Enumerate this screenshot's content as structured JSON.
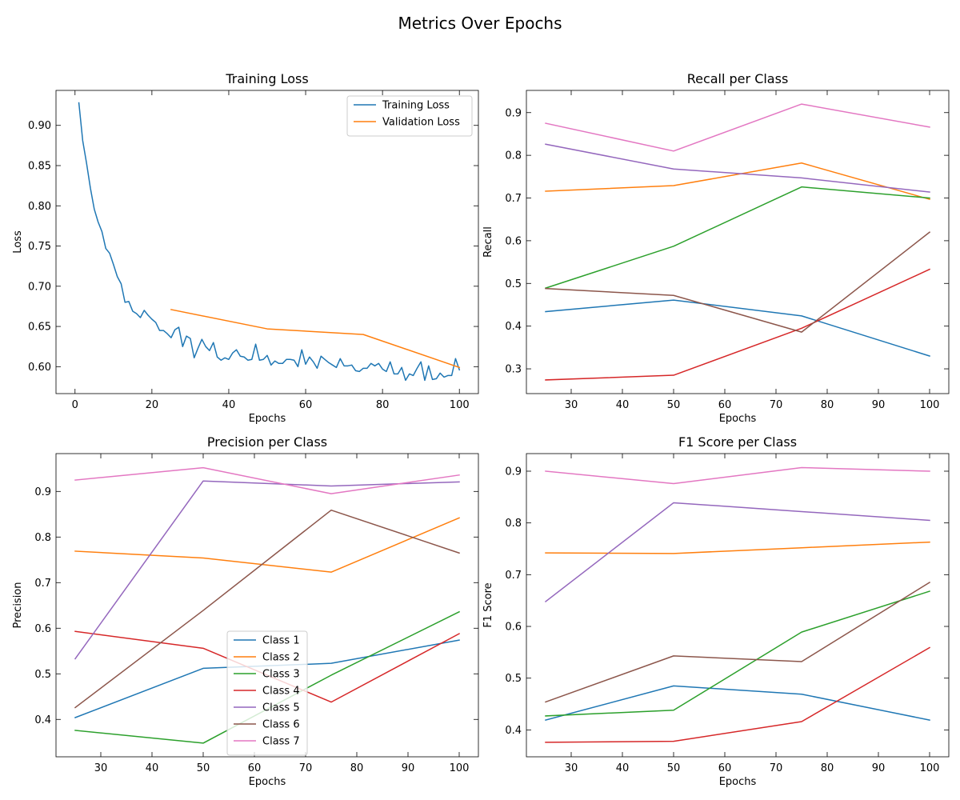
{
  "figure": {
    "title": "Metrics Over Epochs"
  },
  "chart_data": [
    {
      "type": "line",
      "title": "Training Loss",
      "xlabel": "Epochs",
      "ylabel": "Loss",
      "xlim": [
        -4.95,
        104.95
      ],
      "ylim": [
        0.5665,
        0.9435
      ],
      "xticks": [
        0,
        20,
        40,
        60,
        80,
        100
      ],
      "yticks": [
        0.6,
        0.65,
        0.7,
        0.75,
        0.8,
        0.85,
        0.9
      ],
      "ytick_format": 2,
      "legend": "top-right",
      "series": [
        {
          "name": "Training Loss",
          "color": "#1f77b4",
          "x": [
            1,
            2,
            3,
            4,
            5,
            6,
            7,
            8,
            9,
            10,
            11,
            12,
            13,
            14,
            15,
            16,
            17,
            18,
            19,
            20,
            21,
            22,
            23,
            24,
            25,
            26,
            27,
            28,
            29,
            30,
            31,
            32,
            33,
            34,
            35,
            36,
            37,
            38,
            39,
            40,
            41,
            42,
            43,
            44,
            45,
            46,
            47,
            48,
            49,
            50,
            51,
            52,
            53,
            54,
            55,
            56,
            57,
            58,
            59,
            60,
            61,
            62,
            63,
            64,
            65,
            66,
            67,
            68,
            69,
            70,
            71,
            72,
            73,
            74,
            75,
            76,
            77,
            78,
            79,
            80,
            81,
            82,
            83,
            84,
            85,
            86,
            87,
            88,
            89,
            90,
            91,
            92,
            93,
            94,
            95,
            96,
            97,
            98,
            99,
            100
          ],
          "y": [
            0.928,
            0.881,
            0.853,
            0.822,
            0.796,
            0.78,
            0.768,
            0.747,
            0.741,
            0.727,
            0.712,
            0.703,
            0.68,
            0.681,
            0.669,
            0.666,
            0.661,
            0.67,
            0.664,
            0.659,
            0.655,
            0.645,
            0.645,
            0.641,
            0.636,
            0.646,
            0.649,
            0.625,
            0.638,
            0.635,
            0.611,
            0.623,
            0.634,
            0.625,
            0.62,
            0.63,
            0.612,
            0.608,
            0.611,
            0.609,
            0.617,
            0.621,
            0.613,
            0.612,
            0.608,
            0.609,
            0.628,
            0.608,
            0.609,
            0.614,
            0.602,
            0.607,
            0.604,
            0.604,
            0.609,
            0.609,
            0.608,
            0.6,
            0.621,
            0.603,
            0.612,
            0.606,
            0.598,
            0.613,
            0.609,
            0.605,
            0.602,
            0.599,
            0.61,
            0.601,
            0.601,
            0.602,
            0.595,
            0.594,
            0.598,
            0.598,
            0.604,
            0.601,
            0.604,
            0.597,
            0.594,
            0.606,
            0.591,
            0.591,
            0.599,
            0.583,
            0.591,
            0.589,
            0.598,
            0.606,
            0.583,
            0.601,
            0.584,
            0.585,
            0.592,
            0.587,
            0.589,
            0.589,
            0.61,
            0.596
          ]
        },
        {
          "name": "Validation Loss",
          "color": "#ff7f0e",
          "x": [
            25,
            50,
            75,
            100
          ],
          "y": [
            0.671,
            0.647,
            0.64,
            0.599
          ]
        }
      ]
    },
    {
      "type": "line",
      "title": "Recall per Class",
      "xlabel": "Epochs",
      "ylabel": "Recall",
      "xlim": [
        21.25,
        103.75
      ],
      "ylim": [
        0.242,
        0.952
      ],
      "xticks": [
        30,
        40,
        50,
        60,
        70,
        80,
        90,
        100
      ],
      "yticks": [
        0.3,
        0.4,
        0.5,
        0.6,
        0.7,
        0.8,
        0.9
      ],
      "ytick_format": 1,
      "legend": "none",
      "series": [
        {
          "name": "Class 1",
          "color": "#1f77b4",
          "x": [
            25,
            50,
            75,
            100
          ],
          "y": [
            0.434,
            0.461,
            0.424,
            0.33
          ]
        },
        {
          "name": "Class 2",
          "color": "#ff7f0e",
          "x": [
            25,
            50,
            75,
            100
          ],
          "y": [
            0.716,
            0.729,
            0.782,
            0.697
          ]
        },
        {
          "name": "Class 3",
          "color": "#2ca02c",
          "x": [
            25,
            50,
            75,
            100
          ],
          "y": [
            0.489,
            0.587,
            0.726,
            0.7
          ]
        },
        {
          "name": "Class 4",
          "color": "#d62728",
          "x": [
            25,
            50,
            75,
            100
          ],
          "y": [
            0.274,
            0.285,
            0.395,
            0.533
          ]
        },
        {
          "name": "Class 5",
          "color": "#9467bd",
          "x": [
            25,
            50,
            75,
            100
          ],
          "y": [
            0.826,
            0.768,
            0.747,
            0.714
          ]
        },
        {
          "name": "Class 6",
          "color": "#8c564b",
          "x": [
            25,
            50,
            75,
            100
          ],
          "y": [
            0.488,
            0.472,
            0.386,
            0.62
          ]
        },
        {
          "name": "Class 7",
          "color": "#e377c2",
          "x": [
            25,
            50,
            75,
            100
          ],
          "y": [
            0.875,
            0.81,
            0.92,
            0.866
          ]
        }
      ]
    },
    {
      "type": "line",
      "title": "Precision per Class",
      "xlabel": "Epochs",
      "ylabel": "Precision",
      "xlim": [
        21.25,
        103.75
      ],
      "ylim": [
        0.318,
        0.983
      ],
      "xticks": [
        30,
        40,
        50,
        60,
        70,
        80,
        90,
        100
      ],
      "yticks": [
        0.4,
        0.5,
        0.6,
        0.7,
        0.8,
        0.9
      ],
      "ytick_format": 1,
      "legend": "bottom-center",
      "series": [
        {
          "name": "Class 1",
          "color": "#1f77b4",
          "x": [
            25,
            50,
            75,
            100
          ],
          "y": [
            0.404,
            0.512,
            0.523,
            0.574
          ]
        },
        {
          "name": "Class 2",
          "color": "#ff7f0e",
          "x": [
            25,
            50,
            75,
            100
          ],
          "y": [
            0.769,
            0.754,
            0.723,
            0.842
          ]
        },
        {
          "name": "Class 3",
          "color": "#2ca02c",
          "x": [
            25,
            50,
            75,
            100
          ],
          "y": [
            0.376,
            0.348,
            0.497,
            0.636
          ]
        },
        {
          "name": "Class 4",
          "color": "#d62728",
          "x": [
            25,
            50,
            75,
            100
          ],
          "y": [
            0.593,
            0.556,
            0.438,
            0.588
          ]
        },
        {
          "name": "Class 5",
          "color": "#9467bd",
          "x": [
            25,
            50,
            75,
            100
          ],
          "y": [
            0.533,
            0.923,
            0.912,
            0.921
          ]
        },
        {
          "name": "Class 6",
          "color": "#8c564b",
          "x": [
            25,
            50,
            75,
            100
          ],
          "y": [
            0.426,
            0.639,
            0.859,
            0.765
          ]
        },
        {
          "name": "Class 7",
          "color": "#e377c2",
          "x": [
            25,
            50,
            75,
            100
          ],
          "y": [
            0.925,
            0.952,
            0.895,
            0.936
          ]
        }
      ]
    },
    {
      "type": "line",
      "title": "F1 Score per Class",
      "xlabel": "Epochs",
      "ylabel": "F1 Score",
      "xlim": [
        21.25,
        103.75
      ],
      "ylim": [
        0.348,
        0.934
      ],
      "xticks": [
        30,
        40,
        50,
        60,
        70,
        80,
        90,
        100
      ],
      "yticks": [
        0.4,
        0.5,
        0.6,
        0.7,
        0.8,
        0.9
      ],
      "ytick_format": 1,
      "legend": "none",
      "series": [
        {
          "name": "Class 1",
          "color": "#1f77b4",
          "x": [
            25,
            50,
            75,
            100
          ],
          "y": [
            0.419,
            0.485,
            0.469,
            0.419
          ]
        },
        {
          "name": "Class 2",
          "color": "#ff7f0e",
          "x": [
            25,
            50,
            75,
            100
          ],
          "y": [
            0.742,
            0.741,
            0.752,
            0.763
          ]
        },
        {
          "name": "Class 3",
          "color": "#2ca02c",
          "x": [
            25,
            50,
            75,
            100
          ],
          "y": [
            0.427,
            0.438,
            0.589,
            0.668
          ]
        },
        {
          "name": "Class 4",
          "color": "#d62728",
          "x": [
            25,
            50,
            75,
            100
          ],
          "y": [
            0.376,
            0.378,
            0.416,
            0.559
          ]
        },
        {
          "name": "Class 5",
          "color": "#9467bd",
          "x": [
            25,
            50,
            75,
            100
          ],
          "y": [
            0.648,
            0.839,
            0.822,
            0.805
          ]
        },
        {
          "name": "Class 6",
          "color": "#8c564b",
          "x": [
            25,
            50,
            75,
            100
          ],
          "y": [
            0.454,
            0.543,
            0.532,
            0.685
          ]
        },
        {
          "name": "Class 7",
          "color": "#e377c2",
          "x": [
            25,
            50,
            75,
            100
          ],
          "y": [
            0.9,
            0.876,
            0.907,
            0.9
          ]
        }
      ]
    }
  ]
}
